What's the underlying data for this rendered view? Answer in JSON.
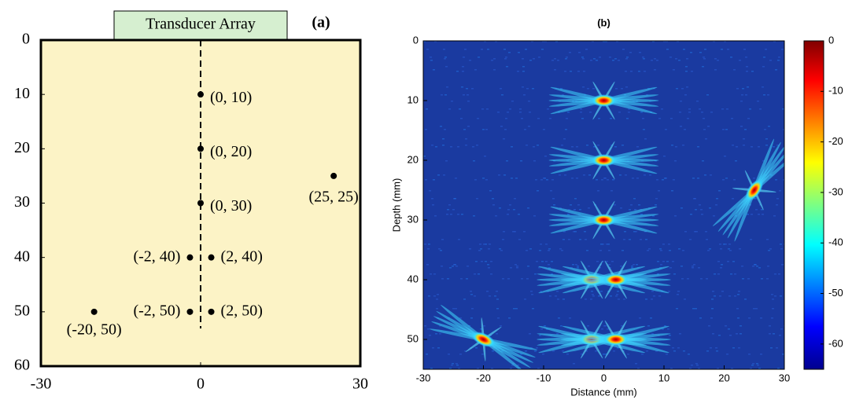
{
  "chart_data": [
    {
      "type": "scatter",
      "title": "(a)",
      "header": "Transducer Array",
      "x": [
        0,
        0,
        0,
        25,
        -2,
        2,
        -2,
        2,
        -20
      ],
      "values": [
        10,
        20,
        30,
        25,
        40,
        40,
        50,
        50,
        50
      ],
      "labels": [
        "(0, 10)",
        "(0, 20)",
        "(0, 30)",
        "(25, 25)",
        "(-2, 40)",
        "(2, 40)",
        "(-2, 50)",
        "(2, 50)",
        "(-20, 50)"
      ],
      "xlim": [
        -30,
        30
      ],
      "ylim": [
        60,
        0
      ],
      "xticks": [
        -30,
        0,
        30
      ],
      "yticks": [
        0,
        10,
        20,
        30,
        40,
        50,
        60
      ],
      "color": "#000000",
      "background": "#fcf3c6",
      "header_color": "#d6efd0"
    },
    {
      "type": "heatmap",
      "title": "(b)",
      "x_label": "Distance (mm)",
      "y_label": "Depth (mm)",
      "x": [
        0,
        0,
        0,
        25,
        -2,
        2,
        -2,
        2,
        -20
      ],
      "values": [
        10,
        20,
        30,
        25,
        40,
        40,
        50,
        50,
        50
      ],
      "xlim": [
        -30,
        30
      ],
      "ylim": [
        55,
        0
      ],
      "xticks": [
        -30,
        -20,
        -10,
        0,
        10,
        20,
        30
      ],
      "yticks": [
        0,
        10,
        20,
        30,
        40,
        50
      ],
      "colorbar": {
        "lim": [
          -65,
          0
        ],
        "ticks": [
          0,
          -10,
          -20,
          -30,
          -40,
          -50,
          -60
        ]
      }
    }
  ]
}
